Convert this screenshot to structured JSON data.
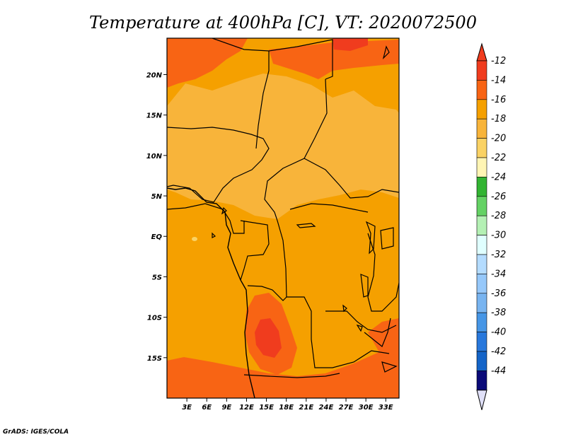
{
  "chart_data": {
    "type": "heatmap",
    "title": "Temperature at 400hPa [C], VT: 2020072500",
    "variable": "Temperature",
    "level": "400hPa",
    "units": "C",
    "valid_time": "2020072500",
    "xlim": [
      0,
      35
    ],
    "ylim": [
      -20,
      24.5
    ],
    "x_ticks": [
      {
        "value": 3,
        "label": "3E"
      },
      {
        "value": 6,
        "label": "6E"
      },
      {
        "value": 9,
        "label": "9E"
      },
      {
        "value": 12,
        "label": "12E"
      },
      {
        "value": 15,
        "label": "15E"
      },
      {
        "value": 18,
        "label": "18E"
      },
      {
        "value": 21,
        "label": "21E"
      },
      {
        "value": 24,
        "label": "24E"
      },
      {
        "value": 27,
        "label": "27E"
      },
      {
        "value": 30,
        "label": "30E"
      },
      {
        "value": 33,
        "label": "33E"
      }
    ],
    "y_ticks": [
      {
        "value": 20,
        "label": "20N"
      },
      {
        "value": 15,
        "label": "15N"
      },
      {
        "value": 10,
        "label": "10N"
      },
      {
        "value": 5,
        "label": "5N"
      },
      {
        "value": 0,
        "label": "EQ"
      },
      {
        "value": -5,
        "label": "5S"
      },
      {
        "value": -10,
        "label": "10S"
      },
      {
        "value": -15,
        "label": "15S"
      }
    ],
    "colorbar": {
      "labels": [
        "-12",
        "-14",
        "-16",
        "-18",
        "-20",
        "-22",
        "-24",
        "-26",
        "-28",
        "-30",
        "-32",
        "-34",
        "-36",
        "-38",
        "-40",
        "-42",
        "-44"
      ],
      "colors": [
        "#f03c1e",
        "#f86414",
        "#f5a000",
        "#f8b43a",
        "#fad264",
        "#fff5b4",
        "#32b432",
        "#64d264",
        "#b4f0b4",
        "#e0ffff",
        "#b4dcff",
        "#96c8fa",
        "#78b4f0",
        "#4696e6",
        "#2878dc",
        "#1464c8",
        "#0a0a78",
        "#e0e0f8"
      ],
      "top_triangle_color": "#f03c1e",
      "bottom_triangle_color": "#e0e0f8"
    },
    "fields": [
      {
        "range": "-14 to -12",
        "color": "#f86414",
        "region": "northern Sahara and coastal Libya/Egypt"
      },
      {
        "range": "-14 to -12",
        "color": "#f86414",
        "region": "southern Africa south of 16S"
      },
      {
        "range": "-12 or warmer",
        "color": "#f03c1e",
        "region": "central Angola near 12S-15S, 14E-16E"
      },
      {
        "range": "-16 to -14",
        "color": "#f5a000",
        "region": "Congo basin, Gulf of Guinea, eastern Sahel"
      },
      {
        "range": "-18 to -16",
        "color": "#f8b43a",
        "region": "Sahel and central Sahara 5N-18N"
      }
    ],
    "credit": "GrADS: IGES/COLA"
  }
}
